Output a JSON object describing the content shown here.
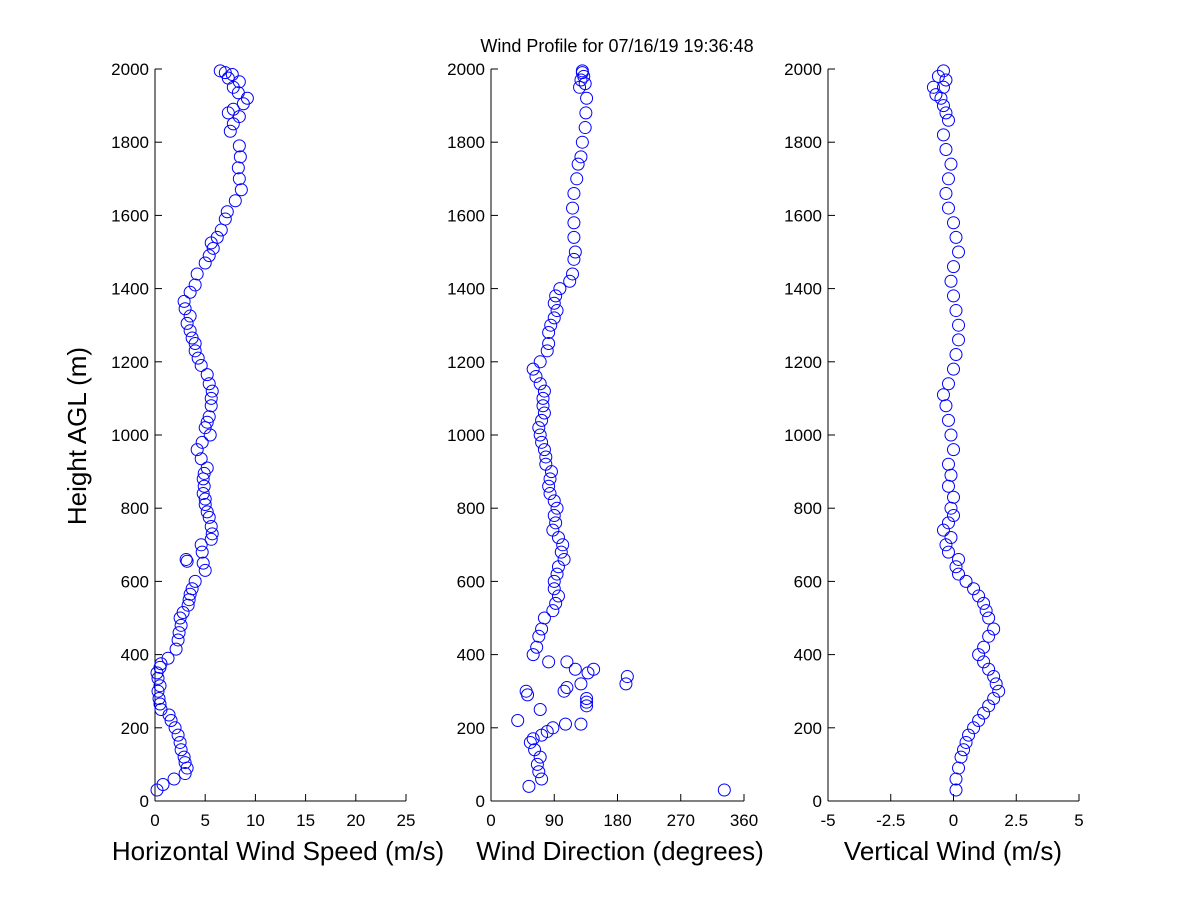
{
  "figure": {
    "title": "Wind Profile for  07/16/19 19:36:48",
    "ylabel": "Height AGL (m)",
    "marker_color": "#0000ff"
  },
  "chart_data": [
    {
      "type": "scatter",
      "xlabel": "Horizontal Wind Speed (m/s)",
      "ylabel": "Height AGL (m)",
      "xlim": [
        0,
        25
      ],
      "ylim": [
        0,
        2000
      ],
      "xticks": [
        "0",
        "5",
        "10",
        "15",
        "20",
        "25"
      ],
      "yticks": [
        "0",
        "200",
        "400",
        "600",
        "800",
        "1000",
        "1200",
        "1400",
        "1600",
        "1800",
        "2000"
      ],
      "grid": false,
      "series": [
        {
          "x": [
            0.2,
            0.8,
            1.9,
            3.0,
            3.2,
            3.0,
            2.9,
            2.6,
            2.5,
            2.3,
            2.0,
            1.6,
            1.4,
            0.6,
            0.5,
            0.4,
            0.3,
            0.5,
            0.3,
            0.2,
            0.5,
            0.6,
            1.3,
            2.1,
            2.3,
            2.4,
            2.6,
            2.5,
            2.8,
            3.3,
            3.4,
            3.5,
            3.7,
            4.0,
            5.0,
            4.8,
            3.2,
            3.1,
            4.7,
            4.6,
            5.6,
            5.7,
            5.6,
            5.4,
            5.2,
            5.0,
            5.0,
            4.8,
            4.9,
            4.8,
            4.9,
            5.2,
            4.6,
            4.2,
            4.7,
            5.5,
            5.0,
            5.2,
            5.4,
            5.6,
            5.6,
            5.7,
            5.4,
            5.2,
            4.6,
            4.3,
            4.0,
            4.0,
            3.7,
            3.5,
            3.2,
            3.5,
            3.0,
            2.9,
            3.5,
            4.0,
            4.2,
            5.0,
            5.4,
            5.8,
            5.6,
            6.2,
            6.6,
            7.0,
            7.2,
            8.0,
            8.6,
            8.4,
            8.3,
            8.5,
            8.4,
            7.5,
            7.8,
            8.4,
            7.3,
            7.8,
            8.8,
            9.2,
            8.3,
            7.8,
            8.4,
            7.3,
            7.7,
            7.0,
            6.5
          ],
          "y": [
            30,
            45,
            60,
            75,
            90,
            105,
            120,
            140,
            160,
            180,
            200,
            220,
            235,
            250,
            265,
            280,
            300,
            315,
            335,
            350,
            365,
            375,
            390,
            415,
            440,
            460,
            480,
            500,
            515,
            535,
            550,
            565,
            580,
            600,
            630,
            650,
            655,
            660,
            680,
            700,
            715,
            730,
            750,
            775,
            790,
            810,
            825,
            840,
            860,
            880,
            895,
            910,
            935,
            960,
            980,
            1000,
            1020,
            1035,
            1050,
            1080,
            1100,
            1120,
            1140,
            1165,
            1190,
            1210,
            1230,
            1250,
            1265,
            1285,
            1305,
            1325,
            1345,
            1365,
            1390,
            1410,
            1440,
            1470,
            1490,
            1510,
            1525,
            1540,
            1560,
            1590,
            1610,
            1640,
            1670,
            1700,
            1730,
            1760,
            1790,
            1830,
            1850,
            1870,
            1880,
            1890,
            1905,
            1920,
            1935,
            1950,
            1965,
            1975,
            1985,
            1990,
            1995
          ]
        }
      ]
    },
    {
      "type": "scatter",
      "xlabel": "Wind Direction (degrees)",
      "ylabel": "",
      "xlim": [
        0,
        360
      ],
      "ylim": [
        0,
        2000
      ],
      "xticks": [
        "0",
        "90",
        "180",
        "270",
        "360"
      ],
      "yticks": [
        "0",
        "200",
        "400",
        "600",
        "800",
        "1000",
        "1200",
        "1400",
        "1600",
        "1800",
        "2000"
      ],
      "grid": false,
      "series": [
        {
          "x": [
            54,
            72,
            68,
            66,
            70,
            62,
            56,
            60,
            72,
            80,
            88,
            106,
            128,
            38,
            70,
            136,
            136,
            136,
            52,
            104,
            50,
            108,
            128,
            192,
            194,
            138,
            146,
            120,
            108,
            82,
            60,
            65,
            68,
            72,
            76,
            88,
            92,
            96,
            90,
            90,
            94,
            96,
            104,
            100,
            102,
            96,
            88,
            92,
            90,
            94,
            90,
            84,
            82,
            84,
            86,
            78,
            78,
            76,
            72,
            70,
            68,
            72,
            76,
            74,
            74,
            76,
            70,
            64,
            60,
            70,
            80,
            82,
            82,
            85,
            90,
            94,
            90,
            92,
            98,
            112,
            116,
            118,
            120,
            118,
            118,
            116,
            118,
            122,
            124,
            128,
            130,
            134,
            135,
            136,
            134,
            132,
            130,
            130,
            128,
            126,
            332
          ],
          "y": [
            40,
            60,
            80,
            100,
            120,
            140,
            160,
            170,
            180,
            190,
            200,
            210,
            210,
            220,
            250,
            260,
            270,
            280,
            290,
            300,
            300,
            310,
            320,
            320,
            340,
            350,
            360,
            360,
            380,
            380,
            400,
            420,
            450,
            470,
            500,
            520,
            540,
            560,
            580,
            600,
            620,
            640,
            660,
            680,
            700,
            720,
            740,
            760,
            780,
            800,
            820,
            840,
            860,
            880,
            900,
            920,
            940,
            960,
            980,
            1000,
            1020,
            1040,
            1060,
            1080,
            1100,
            1120,
            1140,
            1160,
            1180,
            1200,
            1230,
            1250,
            1280,
            1300,
            1320,
            1340,
            1360,
            1380,
            1400,
            1420,
            1440,
            1480,
            1500,
            1540,
            1580,
            1620,
            1660,
            1700,
            1740,
            1760,
            1800,
            1840,
            1880,
            1920,
            1960,
            1980,
            1990,
            1995,
            1970,
            1950,
            30
          ]
        }
      ]
    },
    {
      "type": "scatter",
      "xlabel": "Vertical Wind (m/s)",
      "ylabel": "",
      "xlim": [
        -5,
        5
      ],
      "ylim": [
        0,
        2000
      ],
      "xticks": [
        "-5",
        "-2.5",
        "0",
        "2.5",
        "5"
      ],
      "yticks": [
        "0",
        "200",
        "400",
        "600",
        "800",
        "1000",
        "1200",
        "1400",
        "1600",
        "1800",
        "2000"
      ],
      "grid": false,
      "series": [
        {
          "x": [
            0.1,
            0.1,
            0.2,
            0.3,
            0.4,
            0.5,
            0.6,
            0.8,
            1.0,
            1.2,
            1.4,
            1.6,
            1.8,
            1.7,
            1.6,
            1.4,
            1.2,
            1.0,
            1.2,
            1.4,
            1.6,
            1.4,
            1.3,
            1.2,
            1.0,
            0.8,
            0.5,
            0.2,
            0.1,
            0.2,
            -0.2,
            -0.3,
            -0.1,
            -0.4,
            -0.2,
            0.0,
            -0.1,
            0.0,
            -0.2,
            -0.1,
            -0.2,
            0.0,
            -0.1,
            -0.2,
            -0.3,
            -0.4,
            -0.2,
            0.0,
            0.1,
            0.2,
            0.2,
            0.1,
            0.0,
            -0.1,
            0.0,
            0.2,
            0.1,
            0.0,
            -0.2,
            -0.3,
            -0.2,
            -0.1,
            -0.3,
            -0.4,
            -0.2,
            -0.3,
            -0.4,
            -0.5,
            -0.4,
            -0.3,
            -0.7,
            -0.8,
            -0.6,
            -0.4
          ],
          "y": [
            30,
            60,
            90,
            120,
            140,
            160,
            180,
            200,
            220,
            240,
            260,
            280,
            300,
            320,
            340,
            360,
            380,
            400,
            420,
            450,
            470,
            500,
            520,
            540,
            560,
            580,
            600,
            620,
            640,
            660,
            680,
            700,
            720,
            740,
            760,
            780,
            800,
            830,
            860,
            890,
            920,
            960,
            1000,
            1040,
            1080,
            1110,
            1140,
            1180,
            1220,
            1260,
            1300,
            1340,
            1380,
            1420,
            1460,
            1500,
            1540,
            1580,
            1620,
            1660,
            1700,
            1740,
            1780,
            1820,
            1860,
            1880,
            1900,
            1920,
            1950,
            1970,
            1930,
            1950,
            1980,
            1995
          ]
        }
      ]
    }
  ]
}
